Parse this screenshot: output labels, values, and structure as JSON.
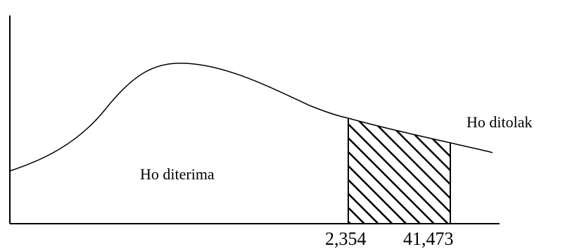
{
  "diagram": {
    "type": "distribution-curve-hypothesis-test",
    "regions": {
      "accept_label": "Ho diterima",
      "reject_label": "Ho ditolak"
    },
    "critical_values": {
      "lower": "2,354",
      "upper": "41,473"
    },
    "shaded_region": "between critical values (hatched)",
    "colors": {
      "line": "#000000",
      "background": "#ffffff"
    }
  }
}
